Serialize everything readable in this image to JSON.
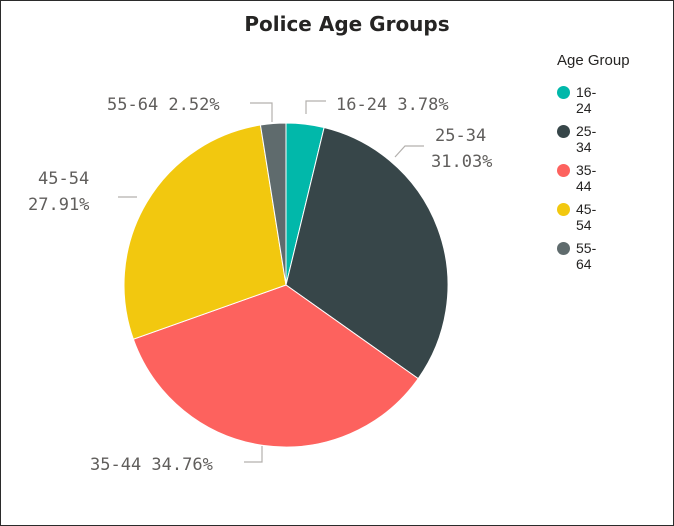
{
  "chart_data": {
    "type": "pie",
    "title": "Police Age Groups",
    "legend_title": "Age Group",
    "legend_placement": "right",
    "categories": [
      "16-24",
      "25-34",
      "35-44",
      "45-54",
      "55-64"
    ],
    "values": [
      3.78,
      31.03,
      34.76,
      27.91,
      2.52
    ],
    "value_labels": [
      "3.78%",
      "31.03%",
      "34.76%",
      "27.91%",
      "2.52%"
    ],
    "data_labels": [
      "16-24 3.78%",
      "25-34 31.03%",
      "35-44 34.76%",
      "45-54 27.91%",
      "55-64 2.52%"
    ],
    "colors": [
      "#01B8AA",
      "#374649",
      "#FD625E",
      "#F2C80F",
      "#5F6B6D"
    ]
  }
}
